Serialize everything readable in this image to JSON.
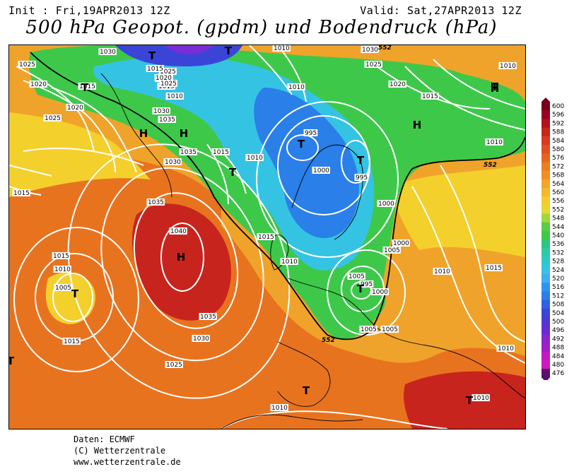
{
  "header": {
    "init": "Init : Fri,19APR2013 12Z",
    "valid": "Valid: Sat,27APR2013 12Z",
    "title": "500 hPa Geopot. (gpdm) und Bodendruck (hPa)"
  },
  "colors": {
    "red": "#c8241e",
    "orange": "#e8731f",
    "orange_light": "#f3a02b",
    "yellow": "#f4d02d",
    "green": "#3ec84a",
    "cyan": "#35c3e3",
    "blue": "#2a7fe8",
    "navy": "#3a45d8",
    "purple": "#7a2cd9",
    "isobar": "#ffffff"
  },
  "isobar_labels": [
    {
      "text": "1025"
    },
    {
      "text": "1020"
    },
    {
      "text": "1015"
    },
    {
      "text": "1020"
    },
    {
      "text": "1025"
    },
    {
      "text": "1030"
    },
    {
      "text": "1025"
    },
    {
      "text": "1020"
    },
    {
      "text": "1015"
    },
    {
      "text": "1010"
    },
    {
      "text": "1015"
    },
    {
      "text": "1020"
    },
    {
      "text": "1025"
    },
    {
      "text": "1030"
    },
    {
      "text": "1035"
    },
    {
      "text": "1035"
    },
    {
      "text": "1030"
    },
    {
      "text": "1015"
    },
    {
      "text": "1010"
    },
    {
      "text": "1035"
    },
    {
      "text": "1040"
    },
    {
      "text": "1035"
    },
    {
      "text": "1030"
    },
    {
      "text": "1025"
    },
    {
      "text": "1015"
    },
    {
      "text": "1010"
    },
    {
      "text": "1005"
    },
    {
      "text": "1015"
    },
    {
      "text": "995"
    },
    {
      "text": "1000"
    },
    {
      "text": "995"
    },
    {
      "text": "1000"
    },
    {
      "text": "1000"
    },
    {
      "text": "1005"
    },
    {
      "text": "1010"
    },
    {
      "text": "1005"
    },
    {
      "text": "995"
    },
    {
      "text": "1000"
    },
    {
      "text": "1005"
    },
    {
      "text": "1015"
    },
    {
      "text": "1010"
    },
    {
      "text": "1010"
    },
    {
      "text": "1020"
    },
    {
      "text": "1015"
    },
    {
      "text": "1010"
    },
    {
      "text": "1015"
    },
    {
      "text": "1010"
    },
    {
      "text": "1010"
    },
    {
      "text": "1025"
    },
    {
      "text": "1030"
    },
    {
      "text": "1010"
    },
    {
      "text": "1005"
    },
    {
      "text": "1015"
    },
    {
      "text": "1010"
    },
    {
      "text": "1010"
    }
  ],
  "pressure_centers": [
    {
      "type": "H"
    },
    {
      "type": "H"
    },
    {
      "type": "H"
    },
    {
      "type": "T"
    },
    {
      "type": "T"
    },
    {
      "type": "T"
    },
    {
      "type": "T"
    },
    {
      "type": "T"
    },
    {
      "type": "T"
    },
    {
      "type": "T"
    },
    {
      "type": "T"
    },
    {
      "type": "H"
    },
    {
      "type": "T"
    },
    {
      "type": "T"
    },
    {
      "type": "T"
    },
    {
      "type": "T"
    },
    {
      "type": "H"
    }
  ],
  "contour_labels": [
    "552",
    "552",
    "552"
  ],
  "color_scale": {
    "unit": "gpdm",
    "ticks": [
      "600",
      "596",
      "592",
      "588",
      "584",
      "580",
      "576",
      "572",
      "568",
      "564",
      "560",
      "556",
      "552",
      "548",
      "544",
      "540",
      "536",
      "532",
      "528",
      "524",
      "520",
      "516",
      "512",
      "508",
      "504",
      "500",
      "496",
      "492",
      "488",
      "484",
      "480",
      "476"
    ],
    "colors": [
      "#7a0019",
      "#9a0022",
      "#b30f1d",
      "#c8241e",
      "#d63b1f",
      "#e0501f",
      "#e6661f",
      "#ec7d20",
      "#f09022",
      "#f3a42a",
      "#f5b82c",
      "#f4cc2d",
      "#e4d831",
      "#9ed83b",
      "#58cc44",
      "#3ec84a",
      "#2fc67a",
      "#2ccaa6",
      "#2cc9c9",
      "#35c3e3",
      "#3eaeee",
      "#2f95ec",
      "#2a7fe8",
      "#2f62e2",
      "#3a45d8",
      "#5038d3",
      "#6a2cd3",
      "#8a25cf",
      "#a31dc6",
      "#c019c2",
      "#d01ab8",
      "#5a0f6e"
    ]
  },
  "footer": {
    "line1": "Daten: ECMWF",
    "line2": "(C) Wetterzentrale",
    "line3": "www.wetterzentrale.de"
  }
}
